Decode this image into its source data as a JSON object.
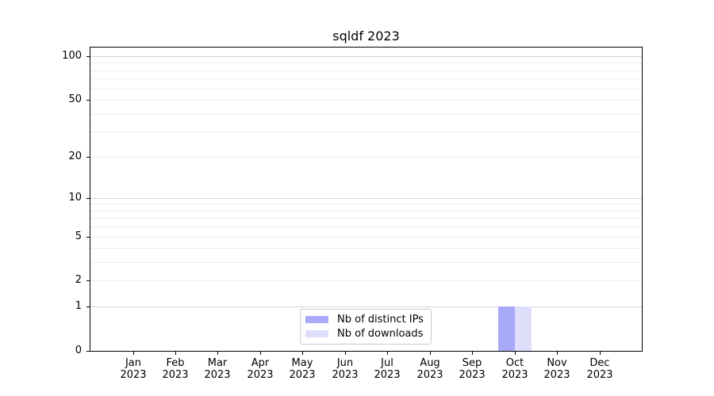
{
  "title": "sqldf 2023",
  "colors": {
    "spine": "#000000",
    "major_grid": "#d4d4d4",
    "minor_grid": "#ececec",
    "legend_border": "#cccccc",
    "background": "#ffffff",
    "distinct_ips_bar": "#a9a9fa",
    "downloads_bar": "#dedefb"
  },
  "legend": {
    "items": [
      {
        "key": "distinct-ips",
        "label": "Nb of distinct IPs",
        "color": "#a9a9fa"
      },
      {
        "key": "downloads",
        "label": "Nb of downloads",
        "color": "#dedefb"
      }
    ]
  },
  "chart_data": {
    "type": "bar",
    "title": "sqldf 2023",
    "xlabel": "",
    "ylabel": "",
    "categories": [
      "Jan 2023",
      "Feb 2023",
      "Mar 2023",
      "Apr 2023",
      "May 2023",
      "Jun 2023",
      "Jul 2023",
      "Aug 2023",
      "Sep 2023",
      "Oct 2023",
      "Nov 2023",
      "Dec 2023"
    ],
    "series": [
      {
        "name": "Nb of distinct IPs",
        "key": "distinct-ips",
        "color": "#a9a9fa",
        "values": [
          0,
          0,
          0,
          0,
          0,
          0,
          0,
          0,
          0,
          1,
          0,
          0
        ]
      },
      {
        "name": "Nb of downloads",
        "key": "downloads",
        "color": "#dedefb",
        "values": [
          0,
          0,
          0,
          0,
          0,
          0,
          0,
          0,
          0,
          1,
          0,
          0
        ]
      }
    ],
    "yscale": "log1p",
    "ylim": [
      0,
      115
    ],
    "y_tick_values": [
      0,
      1,
      2,
      5,
      10,
      20,
      50,
      100
    ],
    "y_tick_labels": [
      "0",
      "1",
      "2",
      "5",
      "10",
      "20",
      "50",
      "100"
    ],
    "y_major_gridlines": [
      1,
      10,
      100
    ],
    "y_minor_gridlines": [
      2,
      3,
      4,
      5,
      6,
      7,
      8,
      9,
      20,
      30,
      40,
      50,
      60,
      70,
      80,
      90
    ],
    "grid": true,
    "legend_position": "lower center"
  }
}
